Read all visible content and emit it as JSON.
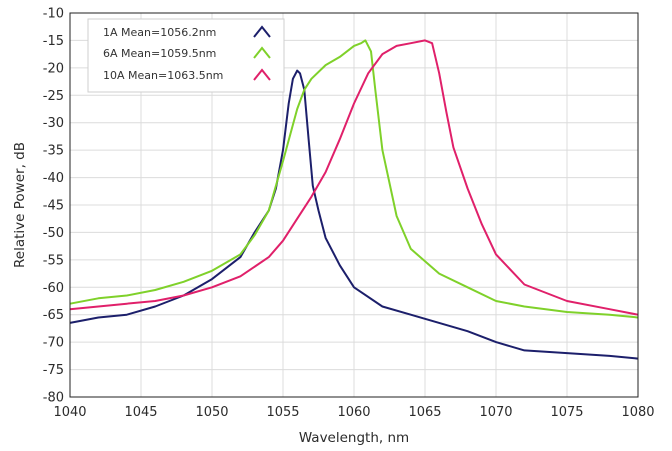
{
  "chart_data": {
    "type": "line",
    "xlabel": "Wavelength, nm",
    "ylabel": "Relative Power, dB",
    "xlim": [
      1040,
      1080
    ],
    "ylim": [
      -80,
      -10
    ],
    "xticks": [
      "1040",
      "1045",
      "1050",
      "1055",
      "1060",
      "1065",
      "1070",
      "1075",
      "1080"
    ],
    "yticks": [
      "-10",
      "-15",
      "-20",
      "-25",
      "-30",
      "-35",
      "-40",
      "-45",
      "-50",
      "-55",
      "-60",
      "-65",
      "-70",
      "-75",
      "-80"
    ],
    "grid": true,
    "legend_position": "top-left",
    "series": [
      {
        "name": "1A Mean=1056.2nm",
        "color": "#1c1f6b",
        "x": [
          1040,
          1042,
          1044,
          1046,
          1048,
          1050,
          1051,
          1052,
          1053,
          1054,
          1054.5,
          1055,
          1055.4,
          1055.7,
          1056,
          1056.2,
          1056.5,
          1056.8,
          1057.1,
          1057.5,
          1058,
          1059,
          1060,
          1062,
          1064,
          1066,
          1068,
          1070,
          1072,
          1075,
          1078,
          1080
        ],
        "y": [
          -66.5,
          -65.5,
          -65,
          -63.5,
          -61.5,
          -58.5,
          -56.5,
          -54.5,
          -50,
          -46,
          -42,
          -35,
          -26.5,
          -22,
          -20.5,
          -21,
          -24,
          -33,
          -41.5,
          -46,
          -51,
          -56,
          -60,
          -63.5,
          -65,
          -66.5,
          -68,
          -70,
          -71.5,
          -72,
          -72.5,
          -73
        ]
      },
      {
        "name": "6A Mean=1059.5nm",
        "color": "#7fd12a",
        "x": [
          1040,
          1042,
          1044,
          1046,
          1048,
          1050,
          1052,
          1053,
          1054,
          1055,
          1056,
          1056.5,
          1057,
          1058,
          1059,
          1060,
          1060.5,
          1060.8,
          1061.2,
          1061.5,
          1062,
          1063,
          1064,
          1066,
          1068,
          1070,
          1072,
          1075,
          1078,
          1080
        ],
        "y": [
          -63,
          -62,
          -61.5,
          -60.5,
          -59,
          -57,
          -54,
          -50.5,
          -46,
          -37,
          -27.5,
          -24,
          -22,
          -19.5,
          -18,
          -16,
          -15.5,
          -15,
          -17,
          -24,
          -35,
          -47,
          -53,
          -57.5,
          -60,
          -62.5,
          -63.5,
          -64.5,
          -65,
          -65.5
        ]
      },
      {
        "name": "10A Mean=1063.5nm",
        "color": "#e0206a",
        "x": [
          1040,
          1042,
          1044,
          1046,
          1048,
          1050,
          1052,
          1054,
          1055,
          1056,
          1057,
          1058,
          1059,
          1060,
          1061,
          1062,
          1063,
          1064,
          1065,
          1065.5,
          1066,
          1066.5,
          1067,
          1068,
          1069,
          1070,
          1072,
          1075,
          1078,
          1080
        ],
        "y": [
          -64,
          -63.5,
          -63,
          -62.5,
          -61.5,
          -60,
          -58,
          -54.5,
          -51.5,
          -47.5,
          -43.5,
          -39,
          -33,
          -26.5,
          -21,
          -17.5,
          -16,
          -15.5,
          -15,
          -15.5,
          -21,
          -28,
          -34.5,
          -42,
          -48.5,
          -54,
          -59.5,
          -62.5,
          -64,
          -65
        ]
      }
    ]
  }
}
